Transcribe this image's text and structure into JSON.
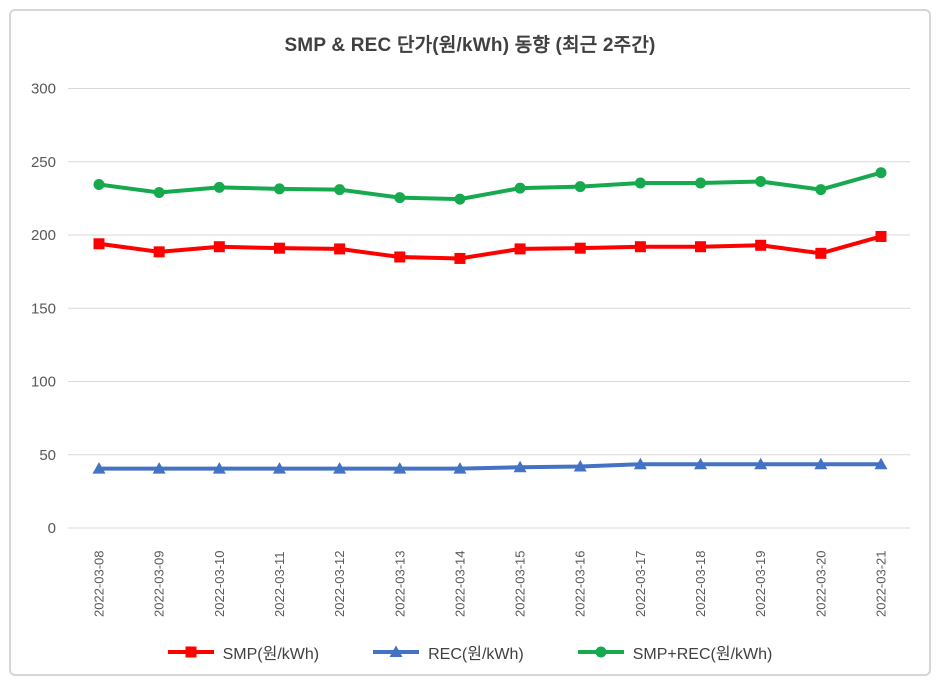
{
  "window": {
    "background": "#ffffff",
    "frame_border_color": "#d6d6d6"
  },
  "chart_data": {
    "type": "line",
    "title": "SMP & REC 단가(원/kWh) 동향 (최근 2주간)",
    "categories": [
      "2022-03-08",
      "2022-03-09",
      "2022-03-10",
      "2022-03-11",
      "2022-03-12",
      "2022-03-13",
      "2022-03-14",
      "2022-03-15",
      "2022-03-16",
      "2022-03-17",
      "2022-03-18",
      "2022-03-19",
      "2022-03-20",
      "2022-03-21"
    ],
    "series": [
      {
        "name": "SMP(원/kWh)",
        "color": "#fe0000",
        "marker": "square",
        "values": [
          194,
          188.5,
          192,
          191,
          190.5,
          185,
          184,
          190.5,
          191,
          192,
          192,
          193,
          187.5,
          199
        ]
      },
      {
        "name": "REC(원/kWh)",
        "color": "#4472c4",
        "marker": "triangle",
        "values": [
          40.5,
          40.5,
          40.5,
          40.5,
          40.5,
          40.5,
          40.5,
          41.5,
          42,
          43.5,
          43.5,
          43.5,
          43.5,
          43.5
        ]
      },
      {
        "name": "SMP+REC(원/kWh)",
        "color": "#16a94e",
        "marker": "circle",
        "values": [
          234.5,
          229,
          232.5,
          231.5,
          231,
          225.5,
          224.5,
          232,
          233,
          235.5,
          235.5,
          236.5,
          231,
          242.5
        ]
      }
    ],
    "ylim": [
      0,
      300
    ],
    "yticks": [
      300,
      250,
      200,
      150,
      100,
      50,
      0
    ],
    "grid": "horizontal",
    "grid_color": "#d9d9d9",
    "axis_label_color": "#595959",
    "title_color": "#404040",
    "legend_position": "bottom",
    "legend_order": [
      "SMP(원/kWh)",
      "REC(원/kWh)",
      "SMP+REC(원/kWh)"
    ]
  }
}
